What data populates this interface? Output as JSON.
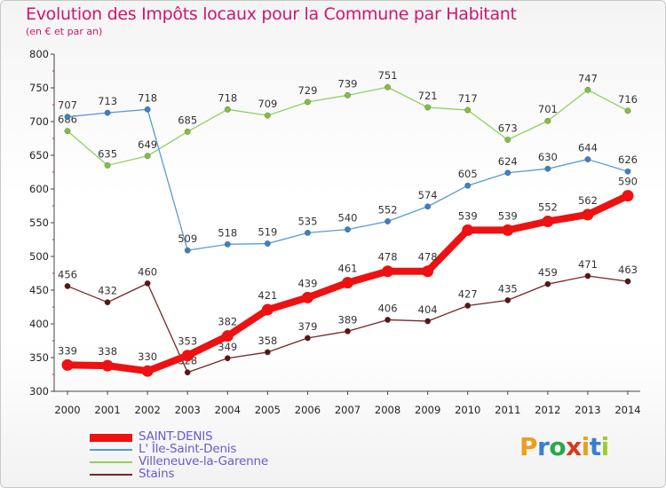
{
  "title": "Evolution des Impôts locaux pour la Commune par Habitant",
  "subtitle": "(en € et par an)",
  "logo": {
    "text": "Proxiti",
    "colors": [
      "#e8a020",
      "#3a7fd0",
      "#2aa84a",
      "#d23c20",
      "#e8a020",
      "#3a7fd0",
      "#9acd32"
    ]
  },
  "chart_data": {
    "type": "line",
    "x": [
      "2000",
      "2001",
      "2002",
      "2003",
      "2004",
      "2005",
      "2006",
      "2007",
      "2008",
      "2009",
      "2010",
      "2011",
      "2012",
      "2013",
      "2014"
    ],
    "ylim": [
      300,
      800
    ],
    "yticks": [
      300,
      350,
      400,
      450,
      500,
      550,
      600,
      650,
      700,
      750,
      800
    ],
    "grid": false,
    "series": [
      {
        "name": "Stains",
        "color": "#7a2424",
        "point_color": "#5a1414",
        "values": [
          456,
          432,
          460,
          328,
          349,
          358,
          379,
          389,
          406,
          404,
          427,
          435,
          459,
          471,
          463
        ]
      },
      {
        "name": "Villeneuve-la-Garenne",
        "color": "#90d060",
        "point_color": "#7cc23c",
        "values": [
          686,
          635,
          649,
          685,
          718,
          709,
          729,
          739,
          751,
          721,
          717,
          673,
          701,
          747,
          716
        ]
      },
      {
        "name": "L' Île-Saint-Denis",
        "color": "#5a9ad5",
        "point_color": "#3a80c8",
        "values": [
          707,
          713,
          718,
          509,
          518,
          519,
          535,
          540,
          552,
          574,
          605,
          624,
          630,
          644,
          626
        ]
      },
      {
        "name": "SAINT-DENIS",
        "color": "#ee1111",
        "point_color": "#ee1111",
        "values": [
          339,
          338,
          330,
          353,
          382,
          421,
          439,
          461,
          478,
          478,
          539,
          539,
          552,
          562,
          590
        ]
      }
    ],
    "legend": {
      "position": "bottom-left",
      "entries": [
        {
          "label": "SAINT-DENIS",
          "color": "#ee1111"
        },
        {
          "label": "L' Île-Saint-Denis",
          "color": "#5a9ad5"
        },
        {
          "label": "Villeneuve-la-Garenne",
          "color": "#90d060"
        },
        {
          "label": "Stains",
          "color": "#7a2424"
        }
      ]
    }
  }
}
